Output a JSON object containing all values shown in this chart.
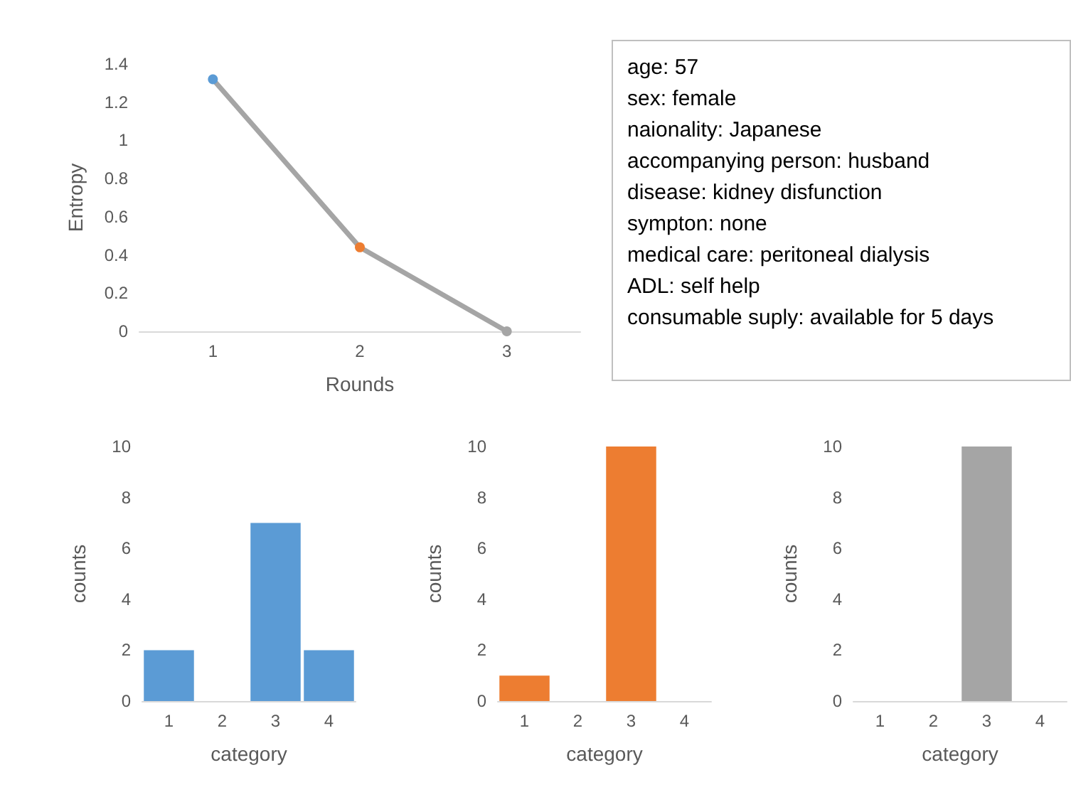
{
  "chart_data": [
    {
      "type": "line",
      "xlabel": "Rounds",
      "ylabel": "Entropy",
      "categories": [
        "1",
        "2",
        "3"
      ],
      "series": [
        {
          "color": "#a5a5a5",
          "colors": [
            "#5b9bd5",
            "#ed7d31",
            "#a5a5a5"
          ],
          "values": [
            1.32,
            0.44,
            0
          ]
        }
      ],
      "ylim": [
        0,
        1.4
      ],
      "yticks": [
        0,
        0.2,
        0.4,
        0.6,
        0.8,
        1,
        1.2,
        1.4
      ],
      "marker": "circle",
      "grid": false
    },
    {
      "type": "other",
      "annotations": [
        "age: 57",
        "sex: female",
        "naionality: Japanese",
        "accompanying person: husband",
        "disease: kidney disfunction",
        "sympton: none",
        "medical care: peritoneal dialysis",
        "ADL: self help",
        "consumable suply: available for 5 days"
      ]
    },
    {
      "type": "bar",
      "xlabel": "category",
      "ylabel": "counts",
      "categories": [
        "1",
        "2",
        "3",
        "4"
      ],
      "values": [
        2,
        0,
        7,
        2
      ],
      "color": "#5b9bd5",
      "ylim": [
        0,
        10
      ],
      "yticks": [
        0,
        2,
        4,
        6,
        8,
        10
      ],
      "grid": false
    },
    {
      "type": "bar",
      "xlabel": "category",
      "ylabel": "counts",
      "categories": [
        "1",
        "2",
        "3",
        "4"
      ],
      "values": [
        1,
        0,
        10,
        0
      ],
      "color": "#ed7d31",
      "ylim": [
        0,
        10
      ],
      "yticks": [
        0,
        2,
        4,
        6,
        8,
        10
      ],
      "grid": false
    },
    {
      "type": "bar",
      "xlabel": "category",
      "ylabel": "counts",
      "categories": [
        "1",
        "2",
        "3",
        "4"
      ],
      "values": [
        0,
        0,
        10,
        0
      ],
      "color": "#a5a5a5",
      "ylim": [
        0,
        10
      ],
      "yticks": [
        0,
        2,
        4,
        6,
        8,
        10
      ],
      "grid": false
    }
  ]
}
